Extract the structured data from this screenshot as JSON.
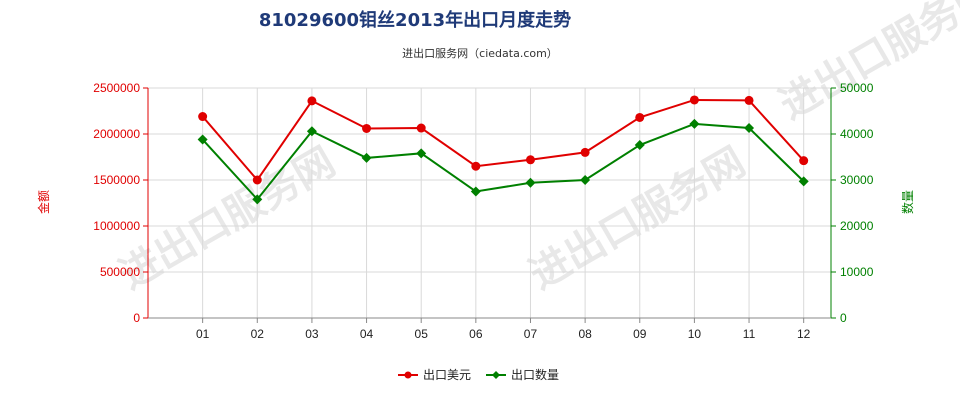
{
  "chart_data": {
    "type": "line",
    "title": "81029600钼丝2013年出口月度走势",
    "subtitle": "进出口服务网（ciedata.com）",
    "categories": [
      "01",
      "02",
      "03",
      "04",
      "05",
      "06",
      "07",
      "08",
      "09",
      "10",
      "11",
      "12"
    ],
    "ylabel_left": "金额",
    "ylabel_right": "数量",
    "ylim_left": [
      0,
      2500000
    ],
    "ylim_right": [
      0,
      50000
    ],
    "yticks_left": [
      "0",
      "500000",
      "1000000",
      "1500000",
      "2000000",
      "2500000"
    ],
    "yticks_right": [
      "0",
      "10000",
      "20000",
      "30000",
      "40000",
      "50000"
    ],
    "grid": true,
    "legend_position": "bottom",
    "series": [
      {
        "name": "出口美元",
        "axis": "left",
        "color": "#e00000",
        "values": [
          2190000,
          1500000,
          2360000,
          2060000,
          2065000,
          1650000,
          1720000,
          1800000,
          2180000,
          2370000,
          2365000,
          1710000
        ]
      },
      {
        "name": "出口数量",
        "axis": "right",
        "color": "#008000",
        "values": [
          38800,
          25800,
          40600,
          34800,
          35800,
          27500,
          29400,
          30000,
          37600,
          42200,
          41300,
          29700
        ]
      }
    ],
    "watermark": "进出口服务网"
  }
}
